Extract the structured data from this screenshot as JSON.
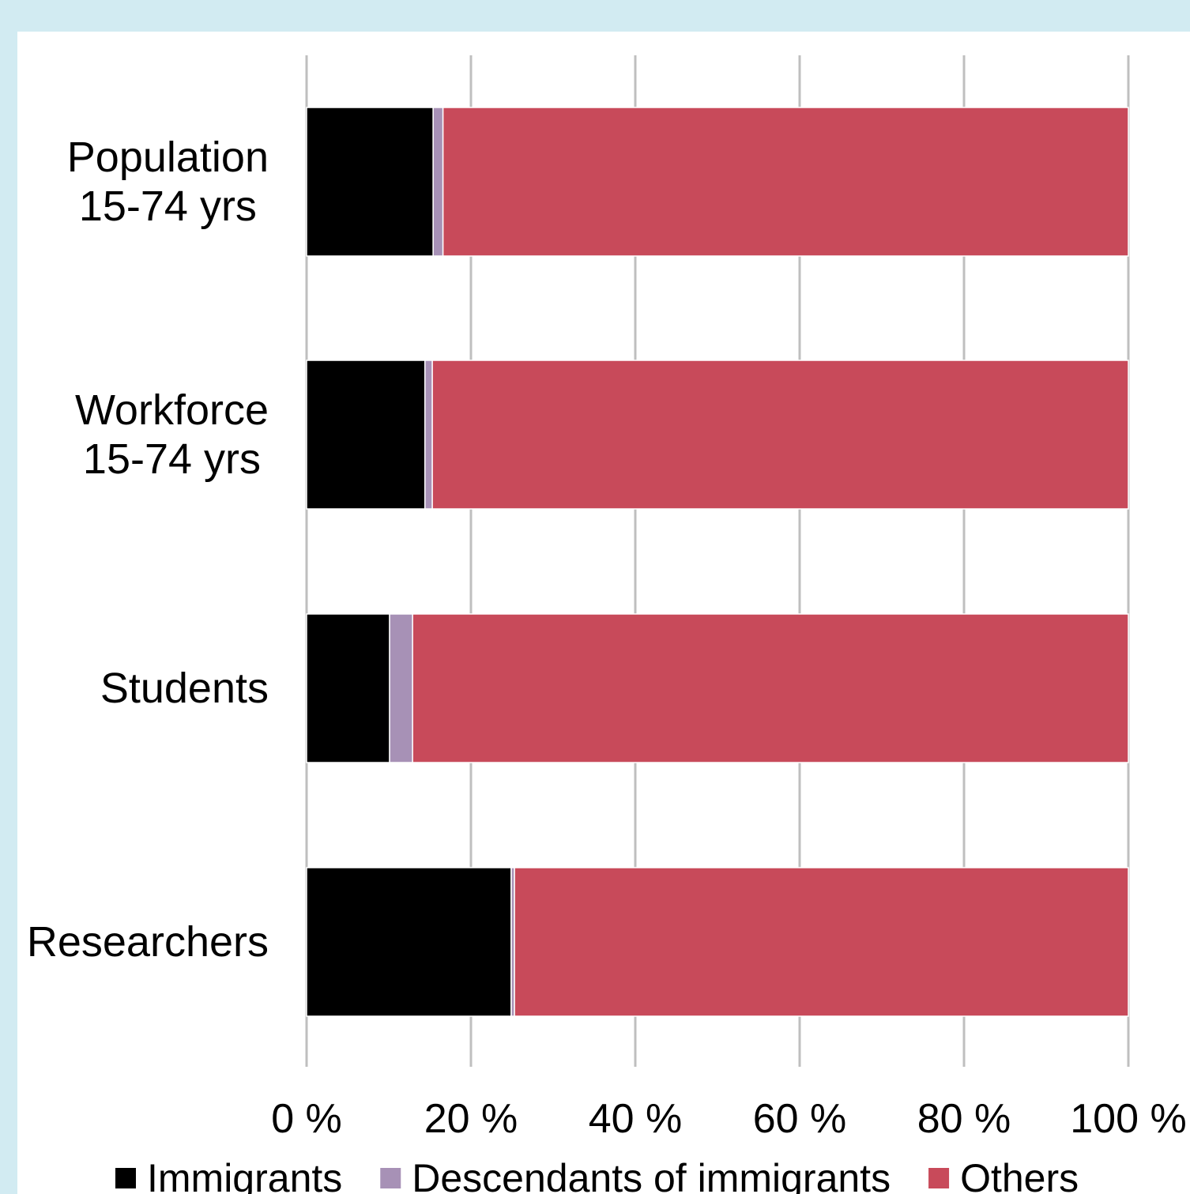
{
  "colors": {
    "background": "#d2ebf2",
    "panel": "#ffffff",
    "grid": "#bfbfbf"
  },
  "chart_data": {
    "type": "bar",
    "orientation": "horizontal",
    "stacked": true,
    "categories": [
      [
        "Population",
        "15-74 yrs"
      ],
      [
        "Workforce",
        "15-74 yrs"
      ],
      [
        "Students"
      ],
      [
        "Researchers"
      ]
    ],
    "series": [
      {
        "name": "Immigrants",
        "color": "#000000",
        "values": [
          15.4,
          14.4,
          10.1,
          24.9
        ]
      },
      {
        "name": "Descendants of immigrants",
        "color": "#a791b6",
        "values": [
          1.2,
          0.9,
          2.8,
          0.4
        ]
      },
      {
        "name": "Others",
        "color": "#c84a5a",
        "values": [
          83.4,
          84.7,
          87.1,
          74.7
        ]
      }
    ],
    "xlim": [
      0,
      100
    ],
    "xticks": [
      "0 %",
      "20 %",
      "40 %",
      "60 %",
      "80 %",
      "100 %"
    ],
    "grid": true,
    "legend": "bottom",
    "title": "",
    "xlabel": "",
    "ylabel": ""
  }
}
